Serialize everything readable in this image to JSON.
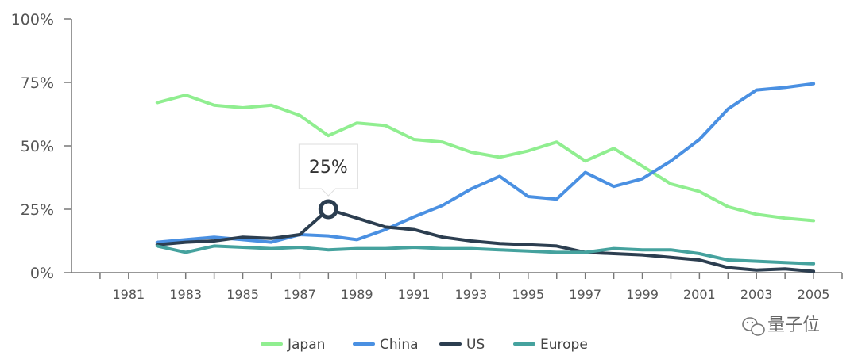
{
  "chart_data": {
    "type": "line",
    "x_ticks": [
      "1981",
      "1983",
      "1985",
      "1987",
      "1989",
      "1991",
      "1993",
      "1995",
      "1997",
      "1999",
      "2001",
      "2003",
      "2005"
    ],
    "y_ticks": [
      "0%",
      "25%",
      "50%",
      "75%",
      "100%"
    ],
    "xlim": [
      1979,
      2006
    ],
    "ylim": [
      0,
      100
    ],
    "x": [
      1982,
      1983,
      1984,
      1985,
      1986,
      1987,
      1988,
      1989,
      1990,
      1991,
      1992,
      1993,
      1994,
      1995,
      1996,
      1997,
      1998,
      1999,
      2000,
      2001,
      2002,
      2003,
      2004,
      2005
    ],
    "series": [
      {
        "name": "Japan",
        "color": "#90ee90",
        "values": [
          67,
          70,
          66,
          65,
          66,
          62,
          54,
          59,
          58,
          52.5,
          51.5,
          47.5,
          45.5,
          48,
          51.5,
          44,
          49,
          42,
          35,
          32,
          26,
          23,
          21.5,
          20.5
        ]
      },
      {
        "name": "China",
        "color": "#4a90e2",
        "values": [
          12,
          13,
          14,
          13,
          12,
          15,
          14.5,
          13,
          17,
          22,
          26.5,
          33,
          38,
          30,
          29,
          39.5,
          34,
          37,
          44,
          52.5,
          64.5,
          72,
          73,
          74.5
        ]
      },
      {
        "name": "US",
        "color": "#2c3e50",
        "values": [
          11,
          12,
          12.5,
          14,
          13.5,
          15,
          25,
          21.5,
          18,
          17,
          14,
          12.5,
          11.5,
          11,
          10.5,
          8,
          7.5,
          7,
          6,
          5,
          2,
          1,
          1.5,
          0.5
        ]
      },
      {
        "name": "Europe",
        "color": "#45a29e",
        "values": [
          10.5,
          8,
          10.5,
          10,
          9.5,
          10,
          9,
          9.5,
          9.5,
          10,
          9.5,
          9.5,
          9,
          8.5,
          8,
          8,
          9.5,
          9,
          9,
          7.5,
          5,
          4.5,
          4,
          3.5
        ]
      }
    ],
    "tooltip": {
      "series": "US",
      "x": 1988,
      "label": "25%"
    },
    "grid": false,
    "legend_position": "bottom-center"
  },
  "watermark": {
    "text": "量子位",
    "icon": "wechat-icon"
  }
}
